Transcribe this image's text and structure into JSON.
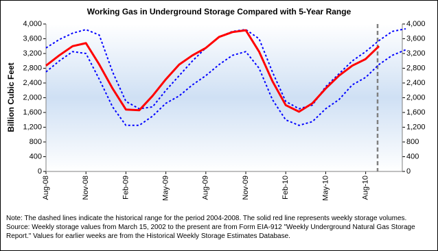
{
  "chart_data": {
    "type": "line",
    "title": "Working Gas in Underground Storage Compared with 5-Year Range",
    "y_label": "Billion Cubic Feet",
    "note": "Note:   The dashed lines indicate the historical range for the period 2004-2008.  The solid red line represents weekly storage volumes.  Source:  Weekly storage values from March 15, 2002 to the present are from Form EIA-912 \"Weekly Underground Natural Gas Storage Report.\"  Values for earlier weeks are from the Historical Weekly Storage Estimates Database.",
    "categories": [
      "Aug-08",
      null,
      null,
      "Nov-08",
      null,
      null,
      "Feb-09",
      null,
      null,
      "May-09",
      null,
      null,
      "Aug-09",
      null,
      null,
      "Nov-09",
      null,
      null,
      "Feb-10",
      null,
      null,
      "May-10",
      null,
      null,
      "Aug-10",
      null,
      null,
      null
    ],
    "series": [
      {
        "color": "#0000ff",
        "dashed": true,
        "width": 2,
        "values": [
          3350,
          3580,
          3750,
          3850,
          3700,
          2700,
          1900,
          1700,
          1750,
          2200,
          2600,
          3000,
          3350,
          3650,
          3800,
          3850,
          3600,
          2700,
          1900,
          1700,
          1800,
          2300,
          2650,
          3000,
          3250,
          3550,
          3800,
          3870
        ]
      },
      {
        "color": "#0000ff",
        "dashed": true,
        "width": 2,
        "values": [
          2700,
          3000,
          3250,
          3200,
          2500,
          1750,
          1250,
          1250,
          1500,
          1850,
          2050,
          2350,
          2600,
          2900,
          3150,
          3250,
          2800,
          1950,
          1400,
          1250,
          1350,
          1700,
          1950,
          2350,
          2550,
          2900,
          3150,
          3300
        ]
      },
      {
        "color": "#ff0000",
        "dashed": false,
        "width": 3,
        "values": [
          2870,
          3150,
          3400,
          3480,
          2900,
          2250,
          1680,
          1660,
          2050,
          2500,
          2900,
          3150,
          3350,
          3650,
          3780,
          3830,
          3250,
          2450,
          1800,
          1620,
          1850,
          2250,
          2600,
          2870,
          3050,
          3400,
          null,
          null
        ]
      }
    ],
    "ylim": [
      0,
      4000
    ],
    "yticks": [
      0,
      400,
      800,
      {
        "value": 1200,
        "label": "1,200"
      },
      {
        "value": 1600,
        "label": "1,600"
      },
      {
        "value": 2000,
        "label": "2,000"
      },
      {
        "value": 2400,
        "label": "2,400"
      },
      {
        "value": 2800,
        "label": "2,800"
      },
      {
        "value": 3200,
        "label": "3,200"
      },
      {
        "value": 3600,
        "label": "3,600"
      },
      {
        "value": 4000,
        "label": "4,000"
      }
    ],
    "y2lim": [
      0,
      4000
    ],
    "y2ticks": [
      0,
      400,
      800,
      {
        "value": 1200,
        "label": "1,200"
      },
      {
        "value": 1600,
        "label": "1,600"
      },
      {
        "value": 2000,
        "label": "2,000"
      },
      {
        "value": 2400,
        "label": "2,400"
      },
      {
        "value": 2800,
        "label": "2,800"
      },
      {
        "value": 3200,
        "label": "3,200"
      },
      {
        "value": 3600,
        "label": "3,600"
      },
      {
        "value": 4000,
        "label": "4,000"
      }
    ]
  }
}
